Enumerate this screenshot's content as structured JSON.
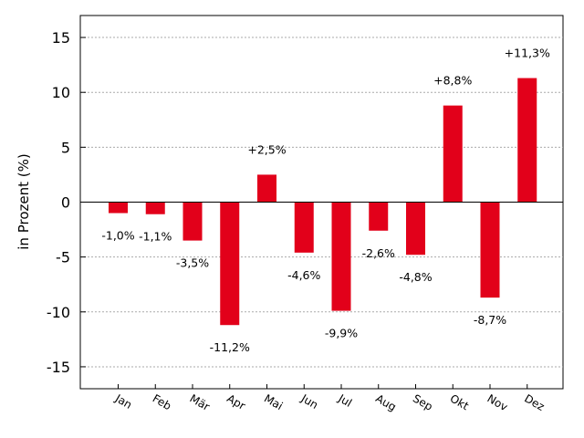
{
  "chart_data": {
    "type": "bar",
    "categories": [
      "Jan",
      "Feb",
      "Mär",
      "Apr",
      "Mai",
      "Jun",
      "Jul",
      "Aug",
      "Sep",
      "Okt",
      "Nov",
      "Dez"
    ],
    "values": [
      -1.0,
      -1.1,
      -3.5,
      -11.2,
      2.5,
      -4.6,
      -9.9,
      -2.6,
      -4.8,
      8.8,
      -8.7,
      11.3
    ],
    "data_labels": [
      "-1,0%",
      "-1,1%",
      "-3,5%",
      "-11,2%",
      "+2,5%",
      "-4,6%",
      "-9,9%",
      "-2,6%",
      "-4,8%",
      "+8,8%",
      "-8,7%",
      "+11,3%"
    ],
    "title": "",
    "xlabel": "",
    "ylabel": "in Prozent (%)",
    "ylim": [
      -17,
      17
    ],
    "yticks": [
      -15,
      -10,
      -5,
      0,
      5,
      10,
      15
    ],
    "grid": "horizontal dotted",
    "legend": "none",
    "colors": {
      "bar": "#e2001a",
      "grid": "#aaaaaa",
      "zero_line": "#000000"
    }
  }
}
